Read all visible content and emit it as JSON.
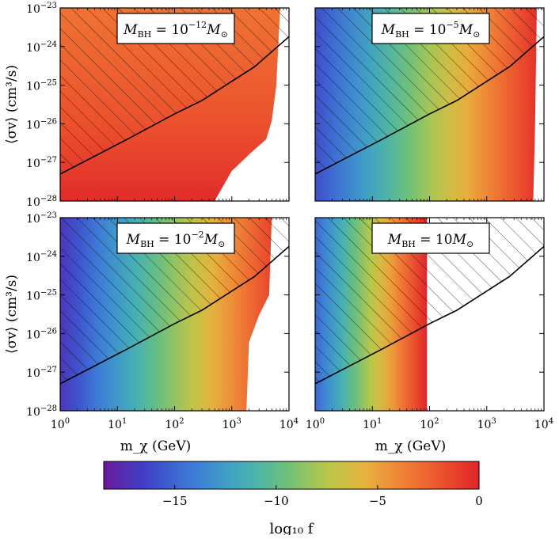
{
  "chart_data": {
    "type": "heatmap",
    "xlabel": "m_χ (GeV)",
    "ylabel": "⟨σv⟩ (cm³/s)",
    "x_scale": "log",
    "y_scale": "log",
    "xlim": [
      1,
      10000
    ],
    "ylim": [
      1e-28,
      1e-23
    ],
    "x_ticks": [
      {
        "value": 1,
        "base": "10",
        "exp": "0"
      },
      {
        "value": 10,
        "base": "10",
        "exp": "1"
      },
      {
        "value": 100,
        "base": "10",
        "exp": "2"
      },
      {
        "value": 1000,
        "base": "10",
        "exp": "3"
      },
      {
        "value": 10000,
        "base": "10",
        "exp": "4"
      }
    ],
    "y_ticks": [
      {
        "value": 1e-28,
        "base": "10",
        "exp": "−28"
      },
      {
        "value": 1e-27,
        "base": "10",
        "exp": "−27"
      },
      {
        "value": 1e-26,
        "base": "10",
        "exp": "−26"
      },
      {
        "value": 1e-25,
        "base": "10",
        "exp": "−25"
      },
      {
        "value": 1e-24,
        "base": "10",
        "exp": "−24"
      },
      {
        "value": 1e-23,
        "base": "10",
        "exp": "−23"
      }
    ],
    "excluded_boundary": [
      {
        "m": 1,
        "sv": 5e-28
      },
      {
        "m": 15,
        "sv": 4e-27
      },
      {
        "m": 100,
        "sv": 1.8e-26
      },
      {
        "m": 300,
        "sv": 4e-26
      },
      {
        "m": 2500,
        "sv": 3e-25
      },
      {
        "m": 10000,
        "sv": 1.8e-24
      }
    ],
    "panels": [
      {
        "label_base": "M",
        "label_sub": "BH",
        "label_eq": " = 10",
        "label_exp": "−12",
        "label_tail": "M",
        "label_tail_sub": "⊙",
        "f_left": -4,
        "f_right": 0,
        "gradient": "flat",
        "white_region_boundary": [
          {
            "m": 10000,
            "sv": 1e-23
          },
          {
            "m": 7000,
            "sv": 1e-23
          },
          {
            "m": 6000,
            "sv": 1e-25
          },
          {
            "m": 5000,
            "sv": 1.2e-26
          },
          {
            "m": 4000,
            "sv": 4e-27
          },
          {
            "m": 2000,
            "sv": 1.6e-27
          },
          {
            "m": 1000,
            "sv": 6e-28
          },
          {
            "m": 500,
            "sv": 1e-28
          }
        ]
      },
      {
        "label_base": "M",
        "label_sub": "BH",
        "label_eq": " = 10",
        "label_exp": "−5",
        "label_tail": "M",
        "label_tail_sub": "⊙",
        "f_left": -16,
        "f_right": 0,
        "gradient": "horizontal",
        "white_region_boundary": [
          {
            "m": 10000,
            "sv": 1e-23
          },
          {
            "m": 7500,
            "sv": 1e-23
          },
          {
            "m": 7000,
            "sv": 1e-26
          },
          {
            "m": 6500,
            "sv": 1e-28
          }
        ]
      },
      {
        "label_base": "M",
        "label_sub": "BH",
        "label_eq": " = 10",
        "label_exp": "−2",
        "label_tail": "M",
        "label_tail_sub": "⊙",
        "f_left": -17,
        "f_right": 0,
        "gradient": "horizontal",
        "white_region_boundary": [
          {
            "m": 10000,
            "sv": 1e-23
          },
          {
            "m": 5000,
            "sv": 1e-23
          },
          {
            "m": 4500,
            "sv": 1e-25
          },
          {
            "m": 3000,
            "sv": 3e-26
          },
          {
            "m": 2000,
            "sv": 6e-27
          },
          {
            "m": 1800,
            "sv": 1e-28
          }
        ]
      },
      {
        "label_base": "M",
        "label_sub": "BH",
        "label_eq": " = 10",
        "label_exp": "",
        "label_tail": "M",
        "label_tail_sub": "⊙",
        "f_left": -15,
        "f_right": 0,
        "gradient": "horizontal_cut",
        "cut_m": 90,
        "white_region_boundary": []
      }
    ],
    "colorbar": {
      "label": "log₁₀ f",
      "min": -18.5,
      "max": 0,
      "ticks": [
        "−15",
        "−10",
        "−5",
        "0"
      ],
      "tick_values": [
        -15,
        -10,
        -5,
        0
      ]
    }
  }
}
